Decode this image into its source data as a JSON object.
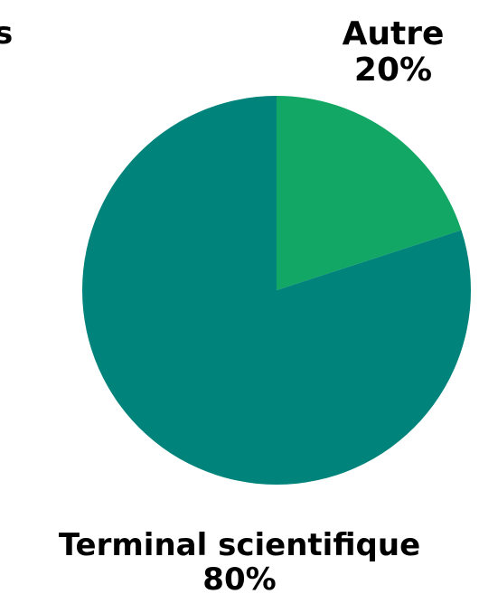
{
  "chart_data": {
    "type": "pie",
    "title": "",
    "cut_label_fragment": "s",
    "slices": [
      {
        "label": "Autre",
        "percent_label": "20%",
        "value": 20,
        "color": "#12a764"
      },
      {
        "label": "Terminal scientifique",
        "percent_label": "80%",
        "value": 80,
        "color": "#00837a"
      }
    ]
  }
}
